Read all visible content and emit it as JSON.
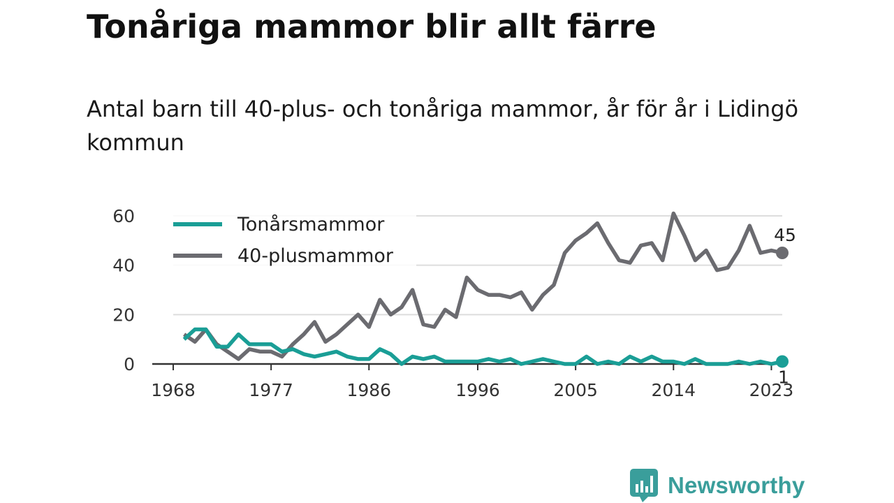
{
  "title": "Tonåriga mammor blir allt färre",
  "subtitle": "Antal barn till 40-plus- och tonåriga mammor, år för år i Lidingö kommun",
  "brand": {
    "name": "Newsworthy",
    "icon": "newsworthy-logo-icon",
    "color": "#3a9e9b"
  },
  "chart_data": {
    "type": "line",
    "xlim": [
      1968,
      2024
    ],
    "ylim": [
      0,
      60
    ],
    "yticks": [
      0,
      20,
      40,
      60
    ],
    "ytick_labels": [
      "0",
      "20",
      "40",
      "60"
    ],
    "xticks": [
      1968,
      1977,
      1986,
      1996,
      2005,
      2014,
      2023
    ],
    "xtick_labels": [
      "1968",
      "1977",
      "1986",
      "1996",
      "2005",
      "2014",
      "2023"
    ],
    "grid": "horizontal",
    "legend": "top-left",
    "x": [
      1969,
      1970,
      1971,
      1972,
      1973,
      1974,
      1975,
      1976,
      1977,
      1978,
      1979,
      1980,
      1981,
      1982,
      1983,
      1984,
      1985,
      1986,
      1987,
      1988,
      1989,
      1990,
      1991,
      1992,
      1993,
      1994,
      1995,
      1996,
      1997,
      1998,
      1999,
      2000,
      2001,
      2002,
      2003,
      2004,
      2005,
      2006,
      2007,
      2008,
      2009,
      2010,
      2011,
      2012,
      2013,
      2014,
      2015,
      2016,
      2017,
      2018,
      2019,
      2020,
      2021,
      2022,
      2023,
      2024
    ],
    "series": [
      {
        "name": "Tonårsmammor",
        "color": "#1a9e96",
        "values": [
          10,
          14,
          14,
          7,
          7,
          12,
          8,
          8,
          8,
          5,
          6,
          4,
          3,
          4,
          5,
          3,
          2,
          2,
          6,
          4,
          0,
          3,
          2,
          3,
          1,
          1,
          1,
          1,
          2,
          1,
          2,
          0,
          1,
          2,
          1,
          0,
          0,
          3,
          0,
          1,
          0,
          3,
          1,
          3,
          1,
          1,
          0,
          2,
          0,
          0,
          0,
          1,
          0,
          1,
          0,
          1
        ],
        "end_label": "1"
      },
      {
        "name": "40-plusmammor",
        "color": "#6b6b70",
        "values": [
          12,
          9,
          14,
          8,
          5,
          2,
          6,
          5,
          5,
          3,
          8,
          12,
          17,
          9,
          12,
          16,
          20,
          15,
          26,
          20,
          23,
          30,
          16,
          15,
          22,
          19,
          35,
          30,
          28,
          28,
          27,
          29,
          22,
          28,
          32,
          45,
          50,
          53,
          57,
          49,
          42,
          41,
          48,
          49,
          42,
          61,
          52,
          42,
          46,
          38,
          39,
          46,
          56,
          45,
          46,
          45
        ],
        "end_label": "45"
      }
    ]
  }
}
